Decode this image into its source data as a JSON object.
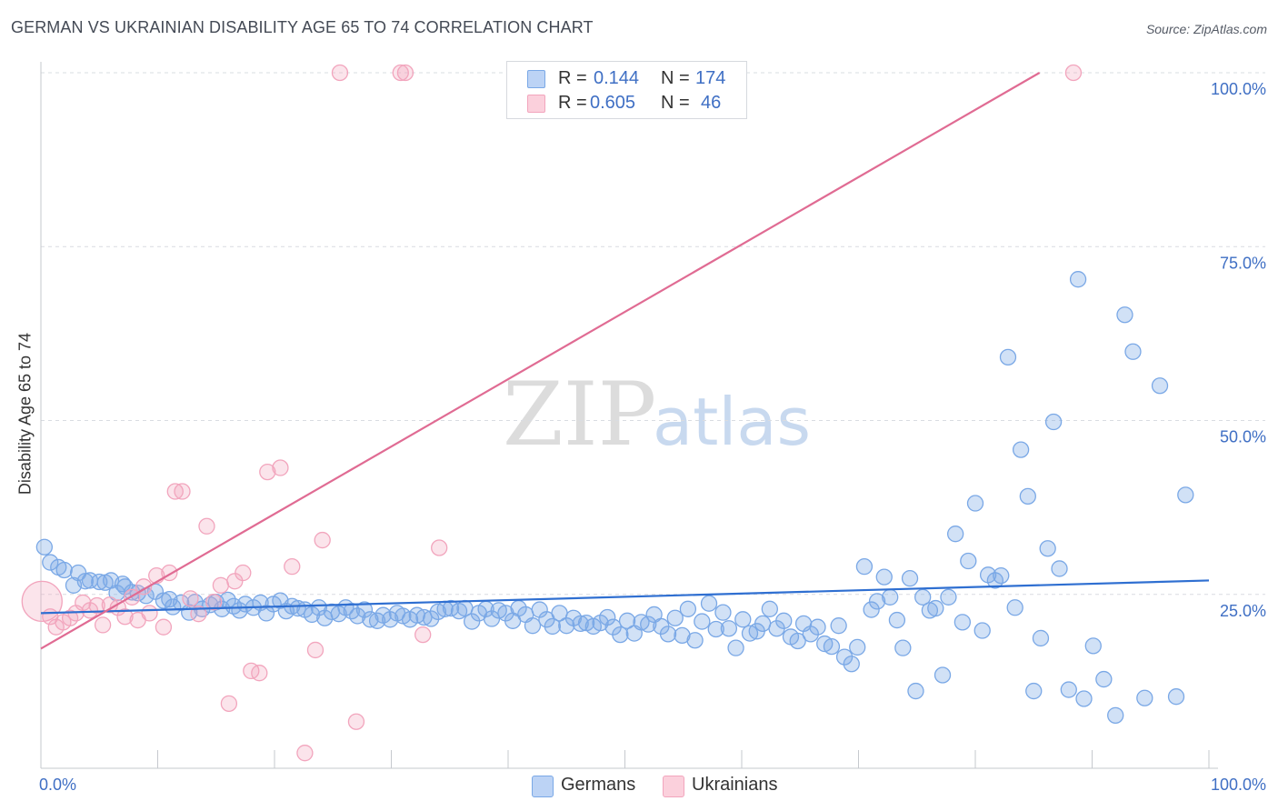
{
  "title": "GERMAN VS UKRAINIAN DISABILITY AGE 65 TO 74 CORRELATION CHART",
  "source": "Source: ZipAtlas.com",
  "legend": {
    "row1": {
      "r_label": "R =",
      "r_value": "0.144",
      "n_label": "N =",
      "n_value": "174"
    },
    "row2": {
      "r_label": "R =",
      "r_value": "0.605",
      "n_label": "N =",
      "n_value": "46"
    }
  },
  "bottom_legend": {
    "germans": "Germans",
    "ukrainians": "Ukrainians"
  },
  "watermark": {
    "part1": "ZIP",
    "part2": "atlas"
  },
  "chart_data": {
    "type": "scatter",
    "title": "GERMAN VS UKRAINIAN DISABILITY AGE 65 TO 74 CORRELATION CHART",
    "xlabel": "",
    "ylabel": "Disability Age 65 to 74",
    "xlim": [
      0,
      100
    ],
    "ylim": [
      0,
      100
    ],
    "x_tick_labels": [
      "0.0%",
      "100.0%"
    ],
    "y_tick_labels": [
      "25.0%",
      "50.0%",
      "75.0%",
      "100.0%"
    ],
    "y_ticks": [
      25,
      50,
      75,
      100
    ],
    "grid": true,
    "colors": {
      "germans": "#7aa8e6",
      "germans_line": "#2f6fd1",
      "ukrainians": "#f2a5bd",
      "ukrainians_line": "#e06b93"
    },
    "series": [
      {
        "name": "Germans",
        "r": 0.144,
        "n": 174,
        "trend": {
          "x": [
            0,
            100
          ],
          "y": [
            22.3,
            27.0
          ]
        },
        "points": [
          [
            0.3,
            31.8
          ],
          [
            0.8,
            29.6
          ],
          [
            1.5,
            28.9
          ],
          [
            2.0,
            28.5
          ],
          [
            2.8,
            26.3
          ],
          [
            3.2,
            28.1
          ],
          [
            3.8,
            26.9
          ],
          [
            4.2,
            27.0
          ],
          [
            5.0,
            26.8
          ],
          [
            5.5,
            26.7
          ],
          [
            6.0,
            27.0
          ],
          [
            6.5,
            25.2
          ],
          [
            7.0,
            26.5
          ],
          [
            7.2,
            26.1
          ],
          [
            7.8,
            25.3
          ],
          [
            8.3,
            25.2
          ],
          [
            9.0,
            24.8
          ],
          [
            9.8,
            25.4
          ],
          [
            10.5,
            24.1
          ],
          [
            11.0,
            24.3
          ],
          [
            11.3,
            23.2
          ],
          [
            12.0,
            23.8
          ],
          [
            12.7,
            22.4
          ],
          [
            13.2,
            23.9
          ],
          [
            13.8,
            22.9
          ],
          [
            14.5,
            23.5
          ],
          [
            15.0,
            23.9
          ],
          [
            15.5,
            22.9
          ],
          [
            16.0,
            24.2
          ],
          [
            16.5,
            23.3
          ],
          [
            17.0,
            22.7
          ],
          [
            17.5,
            23.6
          ],
          [
            18.2,
            23.1
          ],
          [
            18.8,
            23.8
          ],
          [
            19.3,
            22.3
          ],
          [
            19.9,
            23.6
          ],
          [
            20.5,
            24.1
          ],
          [
            21.0,
            22.6
          ],
          [
            21.5,
            23.3
          ],
          [
            22.0,
            23.0
          ],
          [
            22.6,
            22.8
          ],
          [
            23.2,
            22.1
          ],
          [
            23.8,
            23.1
          ],
          [
            24.3,
            21.6
          ],
          [
            24.9,
            22.5
          ],
          [
            25.5,
            22.2
          ],
          [
            26.1,
            23.1
          ],
          [
            26.6,
            22.6
          ],
          [
            27.1,
            21.9
          ],
          [
            27.7,
            22.8
          ],
          [
            28.2,
            21.4
          ],
          [
            28.8,
            21.2
          ],
          [
            29.3,
            22.0
          ],
          [
            29.9,
            21.4
          ],
          [
            30.5,
            22.3
          ],
          [
            31.0,
            21.9
          ],
          [
            31.6,
            21.4
          ],
          [
            32.2,
            22.0
          ],
          [
            32.8,
            21.7
          ],
          [
            33.4,
            21.5
          ],
          [
            34.0,
            22.5
          ],
          [
            34.6,
            22.9
          ],
          [
            35.1,
            23.0
          ],
          [
            35.8,
            22.6
          ],
          [
            36.3,
            23.0
          ],
          [
            36.9,
            21.1
          ],
          [
            37.5,
            22.3
          ],
          [
            38.1,
            22.9
          ],
          [
            38.6,
            21.5
          ],
          [
            39.2,
            22.7
          ],
          [
            39.8,
            22.3
          ],
          [
            40.4,
            21.2
          ],
          [
            40.9,
            23.0
          ],
          [
            41.5,
            22.1
          ],
          [
            42.1,
            20.5
          ],
          [
            42.7,
            22.8
          ],
          [
            43.3,
            21.4
          ],
          [
            43.8,
            20.4
          ],
          [
            44.4,
            22.3
          ],
          [
            45.0,
            20.5
          ],
          [
            45.6,
            21.6
          ],
          [
            46.2,
            20.8
          ],
          [
            46.7,
            20.9
          ],
          [
            47.3,
            20.4
          ],
          [
            47.9,
            20.9
          ],
          [
            48.5,
            21.7
          ],
          [
            49.0,
            20.3
          ],
          [
            49.6,
            19.2
          ],
          [
            50.2,
            21.2
          ],
          [
            50.8,
            19.4
          ],
          [
            51.4,
            21.0
          ],
          [
            52.0,
            20.7
          ],
          [
            52.5,
            22.1
          ],
          [
            53.1,
            20.4
          ],
          [
            53.7,
            19.3
          ],
          [
            54.3,
            21.6
          ],
          [
            54.9,
            19.1
          ],
          [
            55.4,
            22.9
          ],
          [
            56.0,
            18.4
          ],
          [
            56.6,
            21.1
          ],
          [
            57.2,
            23.7
          ],
          [
            57.8,
            20.0
          ],
          [
            58.4,
            22.4
          ],
          [
            58.9,
            20.1
          ],
          [
            59.5,
            17.3
          ],
          [
            60.1,
            21.4
          ],
          [
            60.7,
            19.4
          ],
          [
            61.3,
            19.7
          ],
          [
            61.8,
            20.8
          ],
          [
            62.4,
            22.9
          ],
          [
            63.0,
            20.1
          ],
          [
            63.6,
            21.2
          ],
          [
            64.2,
            18.9
          ],
          [
            64.8,
            18.3
          ],
          [
            65.3,
            20.8
          ],
          [
            65.9,
            19.3
          ],
          [
            66.5,
            20.3
          ],
          [
            67.1,
            17.9
          ],
          [
            67.7,
            17.5
          ],
          [
            68.3,
            20.5
          ],
          [
            68.8,
            16.0
          ],
          [
            69.4,
            15.0
          ],
          [
            69.9,
            17.4
          ],
          [
            70.5,
            29.0
          ],
          [
            71.1,
            22.8
          ],
          [
            71.6,
            24.0
          ],
          [
            72.2,
            27.5
          ],
          [
            72.7,
            24.6
          ],
          [
            73.3,
            21.3
          ],
          [
            73.8,
            17.3
          ],
          [
            74.4,
            27.3
          ],
          [
            74.9,
            11.1
          ],
          [
            75.5,
            24.6
          ],
          [
            76.1,
            22.7
          ],
          [
            76.6,
            23.0
          ],
          [
            77.2,
            13.4
          ],
          [
            77.7,
            24.6
          ],
          [
            78.3,
            33.7
          ],
          [
            78.9,
            21.0
          ],
          [
            79.4,
            29.8
          ],
          [
            80.0,
            38.1
          ],
          [
            80.6,
            19.8
          ],
          [
            81.1,
            27.8
          ],
          [
            81.7,
            27.0
          ],
          [
            82.2,
            27.7
          ],
          [
            82.8,
            59.1
          ],
          [
            83.4,
            23.1
          ],
          [
            83.9,
            45.8
          ],
          [
            84.5,
            39.1
          ],
          [
            85.0,
            11.1
          ],
          [
            85.6,
            18.7
          ],
          [
            86.2,
            31.6
          ],
          [
            86.7,
            49.8
          ],
          [
            87.2,
            28.7
          ],
          [
            88.0,
            11.3
          ],
          [
            88.8,
            70.3
          ],
          [
            89.3,
            10.0
          ],
          [
            90.1,
            17.6
          ],
          [
            91.0,
            12.8
          ],
          [
            92.0,
            7.6
          ],
          [
            92.8,
            65.2
          ],
          [
            93.5,
            59.9
          ],
          [
            94.5,
            10.1
          ],
          [
            95.8,
            55.0
          ],
          [
            97.2,
            10.3
          ],
          [
            98.0,
            39.3
          ]
        ]
      },
      {
        "name": "Ukrainians",
        "r": 0.605,
        "n": 46,
        "trend": {
          "x": [
            0,
            85.5
          ],
          "y": [
            17.2,
            100
          ]
        },
        "points": [
          [
            0.1,
            24.0
          ],
          [
            0.8,
            21.8
          ],
          [
            1.3,
            20.3
          ],
          [
            1.9,
            21.0
          ],
          [
            2.5,
            21.6
          ],
          [
            3.0,
            22.3
          ],
          [
            3.6,
            23.8
          ],
          [
            4.2,
            22.7
          ],
          [
            4.8,
            23.4
          ],
          [
            5.3,
            20.6
          ],
          [
            5.9,
            23.5
          ],
          [
            6.6,
            23.1
          ],
          [
            7.2,
            21.8
          ],
          [
            7.8,
            24.6
          ],
          [
            8.3,
            21.3
          ],
          [
            8.8,
            26.1
          ],
          [
            9.3,
            22.3
          ],
          [
            9.9,
            27.7
          ],
          [
            10.5,
            20.3
          ],
          [
            11.0,
            28.1
          ],
          [
            11.5,
            39.8
          ],
          [
            12.1,
            39.8
          ],
          [
            12.8,
            24.4
          ],
          [
            13.5,
            22.2
          ],
          [
            14.2,
            34.8
          ],
          [
            14.8,
            23.9
          ],
          [
            15.4,
            26.3
          ],
          [
            16.1,
            9.3
          ],
          [
            16.6,
            26.9
          ],
          [
            17.3,
            28.1
          ],
          [
            18.0,
            14.0
          ],
          [
            18.7,
            13.7
          ],
          [
            19.4,
            42.6
          ],
          [
            20.5,
            43.2
          ],
          [
            21.5,
            29.0
          ],
          [
            22.6,
            2.2
          ],
          [
            23.5,
            17.0
          ],
          [
            24.1,
            32.8
          ],
          [
            25.6,
            100
          ],
          [
            27.0,
            6.7
          ],
          [
            30.8,
            100
          ],
          [
            31.2,
            100
          ],
          [
            32.7,
            19.2
          ],
          [
            34.1,
            31.7
          ],
          [
            88.4,
            100
          ]
        ]
      }
    ]
  }
}
